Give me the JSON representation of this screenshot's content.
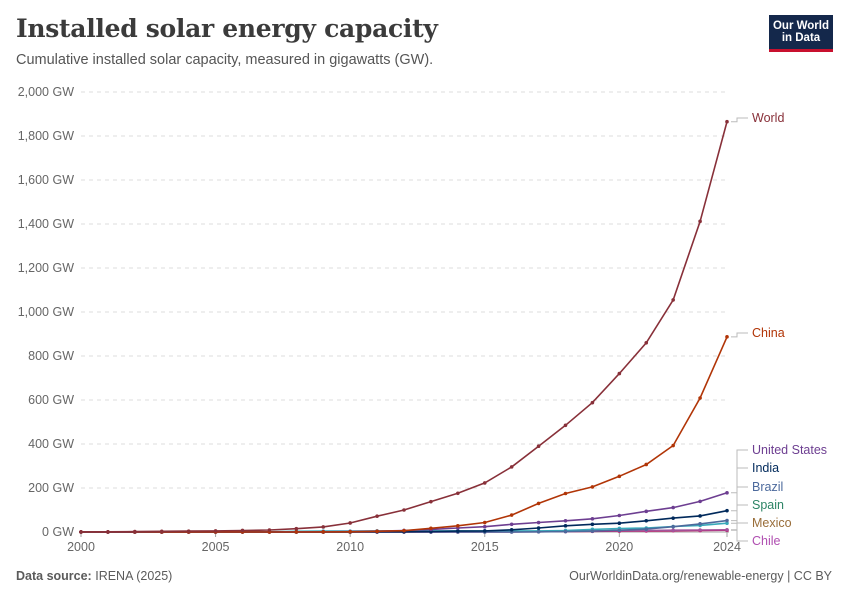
{
  "header": {
    "title": "Installed solar energy capacity",
    "subtitle": "Cumulative installed solar capacity, measured in gigawatts (GW).",
    "logo_line1": "Our World",
    "logo_line2": "in Data"
  },
  "footer": {
    "source_label": "Data source:",
    "source_value": "IRENA (2025)",
    "url": "OurWorldinData.org/renewable-energy | CC BY"
  },
  "chart_data": {
    "type": "line",
    "title": "Installed solar energy capacity",
    "subtitle": "Cumulative installed solar capacity, measured in gigawatts (GW).",
    "xlim": [
      2000,
      2024
    ],
    "ylim": [
      0,
      2000
    ],
    "x_ticks": [
      2000,
      2005,
      2010,
      2015,
      2020,
      2024
    ],
    "x_tick_labels": [
      "2000",
      "2005",
      "2010",
      "2015",
      "2020",
      "2024"
    ],
    "y_ticks": [
      0,
      200,
      400,
      600,
      800,
      1000,
      1200,
      1400,
      1600,
      1800,
      2000
    ],
    "y_tick_labels": [
      "0 GW",
      "200 GW",
      "400 GW",
      "600 GW",
      "800 GW",
      "1,000 GW",
      "1,200 GW",
      "1,400 GW",
      "1,600 GW",
      "1,800 GW",
      "2,000 GW"
    ],
    "grid": "horizontal dashed",
    "legend": "right-side line labels",
    "x": [
      2000,
      2001,
      2002,
      2003,
      2004,
      2005,
      2006,
      2007,
      2008,
      2009,
      2010,
      2011,
      2012,
      2013,
      2014,
      2015,
      2016,
      2017,
      2018,
      2019,
      2020,
      2021,
      2022,
      2023,
      2024
    ],
    "series": [
      {
        "name": "World",
        "color": "#883039",
        "values": [
          1,
          1,
          2,
          3,
          4,
          5,
          7,
          9,
          15,
          23,
          41,
          72,
          100,
          138,
          176,
          223,
          296,
          390,
          485,
          588,
          720,
          860,
          1055,
          1412,
          1865
        ]
      },
      {
        "name": "China",
        "color": "#b13507",
        "values": [
          0,
          0,
          0,
          0,
          0,
          0,
          0,
          0,
          0,
          0.4,
          1,
          3,
          6,
          17,
          28,
          43,
          77,
          130,
          175,
          205,
          253,
          307,
          393,
          609,
          887
        ]
      },
      {
        "name": "United States",
        "color": "#6d3e91",
        "values": [
          0,
          0,
          0,
          0,
          0,
          0,
          0,
          0,
          1,
          1,
          2,
          4,
          7,
          12,
          18,
          24,
          35,
          43,
          51,
          60,
          75,
          94,
          111,
          139,
          178
        ]
      },
      {
        "name": "India",
        "color": "#00295b",
        "values": [
          0,
          0,
          0,
          0,
          0,
          0,
          0,
          0,
          0,
          0,
          0,
          1,
          1,
          2,
          4,
          5,
          10,
          18,
          28,
          35,
          40,
          51,
          63,
          73,
          97
        ]
      },
      {
        "name": "Brazil",
        "color": "#4c6a9c",
        "values": [
          0,
          0,
          0,
          0,
          0,
          0,
          0,
          0,
          0,
          0,
          0,
          0,
          0,
          0,
          0,
          0,
          0,
          1,
          2,
          4,
          8,
          13,
          24,
          37,
          52
        ]
      },
      {
        "name": "Spain",
        "color": "#38aaba",
        "values": [
          0,
          0,
          0,
          0,
          0,
          0,
          0,
          1,
          3,
          4,
          4,
          5,
          5,
          5,
          5,
          5,
          5,
          5,
          7,
          12,
          16,
          18,
          25,
          30,
          40
        ]
      },
      {
        "name": "Mexico",
        "color": "#a2559c",
        "values": [
          0,
          0,
          0,
          0,
          0,
          0,
          0,
          0,
          0,
          0,
          0,
          0,
          0,
          0,
          0,
          0,
          0,
          1,
          3,
          5,
          6,
          7,
          8,
          9,
          10
        ]
      },
      {
        "name": "Chile",
        "color": "#cf0a66",
        "values": [
          0,
          0,
          0,
          0,
          0,
          0,
          0,
          0,
          0,
          0,
          0,
          0,
          0,
          0,
          0,
          1,
          1,
          2,
          2,
          3,
          4,
          5,
          6,
          7,
          8
        ]
      }
    ],
    "label_colors": {
      "World": "#883039",
      "China": "#b13507",
      "United States": "#6d3e91",
      "India": "#00295b",
      "Brazil": "#4c6a9c",
      "Spain": "#2c8465",
      "Mexico": "#996d39",
      "Chile": "#b04fb1"
    }
  }
}
